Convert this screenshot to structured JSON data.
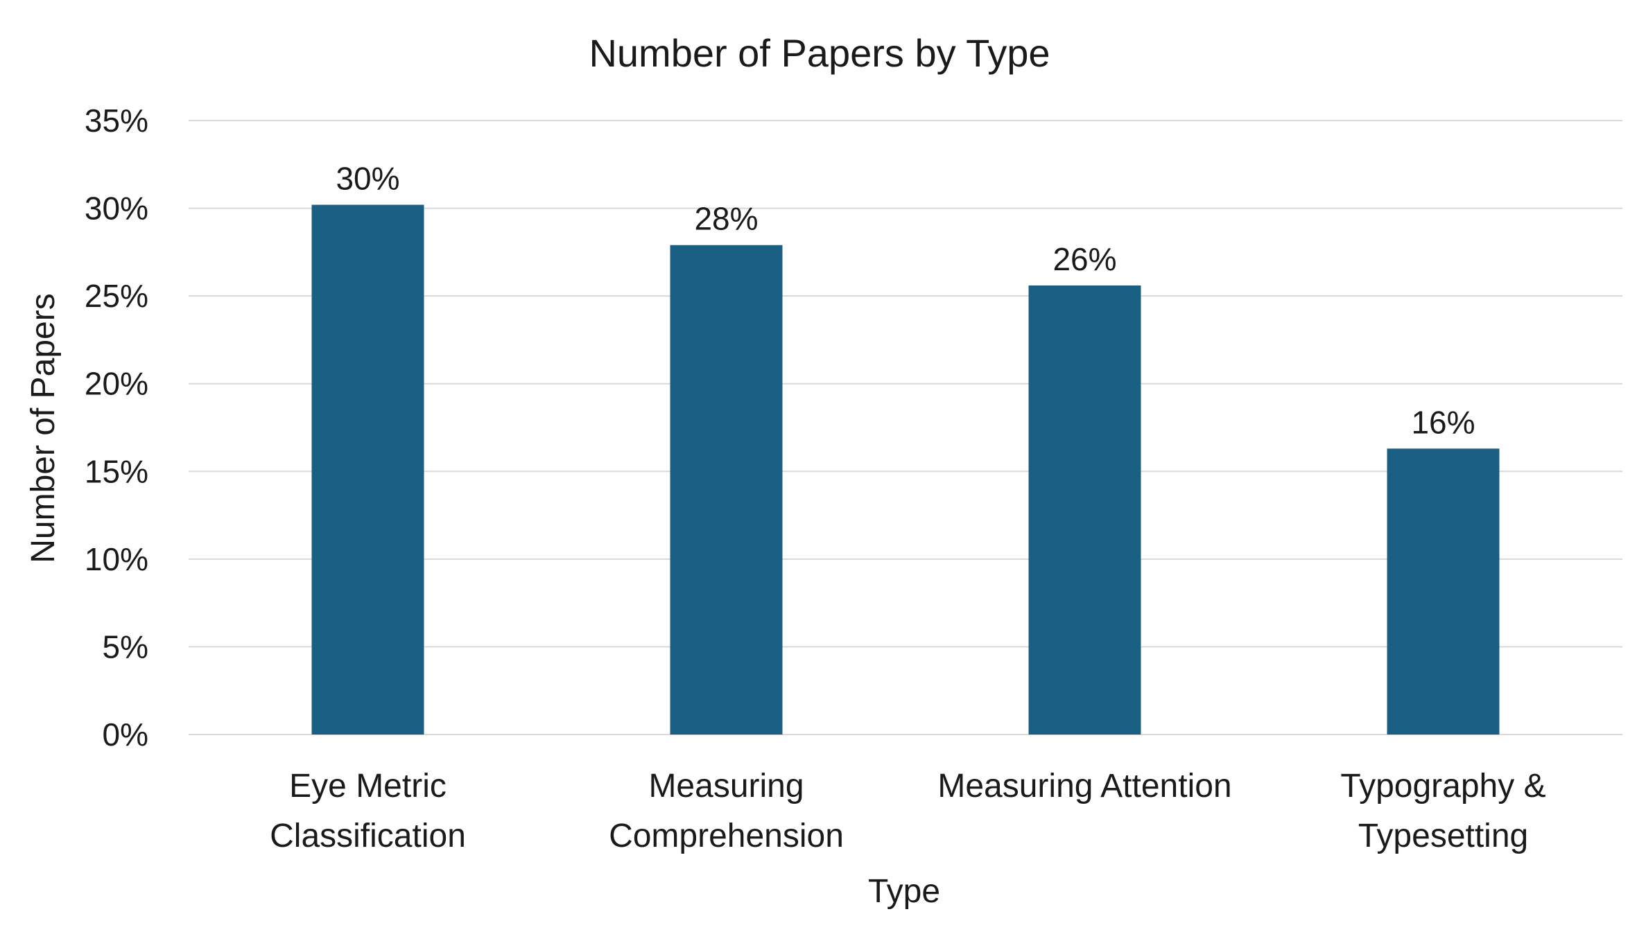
{
  "chart_data": {
    "type": "bar",
    "title": "Number of Papers by Type",
    "xlabel": "Type",
    "ylabel": "Number of Papers",
    "categories": [
      [
        "Eye Metric",
        "Classification"
      ],
      [
        "Measuring",
        "Comprehension"
      ],
      [
        "Measuring Attention"
      ],
      [
        "Typography &",
        "Typesetting"
      ]
    ],
    "values": [
      30.2,
      27.9,
      25.6,
      16.3
    ],
    "data_labels": [
      "30%",
      "28%",
      "26%",
      "16%"
    ],
    "ylim": [
      0,
      35
    ],
    "yticks": [
      0,
      5,
      10,
      15,
      20,
      25,
      30,
      35
    ],
    "ytick_labels": [
      "0%",
      "5%",
      "10%",
      "15%",
      "20%",
      "25%",
      "30%",
      "35%"
    ],
    "grid": true,
    "legend": "none",
    "bar_color": "#1a5f83",
    "grid_color": "#d9d9d9"
  }
}
